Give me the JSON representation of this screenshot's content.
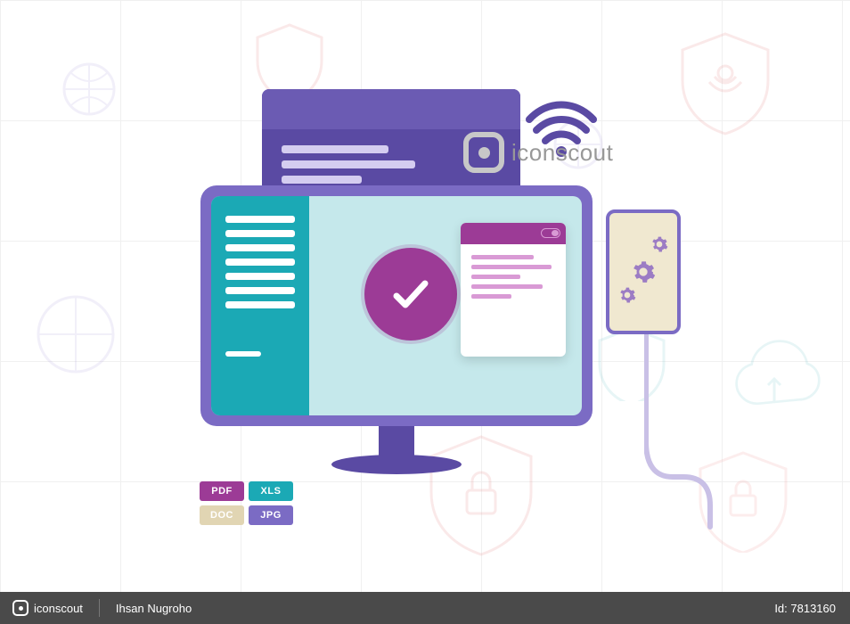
{
  "watermark": {
    "brand": "iconscout"
  },
  "footer": {
    "brand": "iconscout",
    "author": "Ihsan Nugroho",
    "id_label": "Id: 7813160"
  },
  "file_badges": [
    {
      "label": "PDF",
      "bg": "#9c3b96"
    },
    {
      "label": "XLS",
      "bg": "#1ba9b5"
    },
    {
      "label": "DOC",
      "bg": "#e1d5b3"
    },
    {
      "label": "JPG",
      "bg": "#7b6bc4"
    }
  ],
  "colors": {
    "monitor_shell": "#7b6bc4",
    "screen": "#c5e8eb",
    "side_panel": "#1ba9b5",
    "check_badge": "#9c3b96",
    "back_doc": "#5a4aa3",
    "back_doc_hdr": "#6b5bb3",
    "note_hdr": "#9c3b96",
    "wifi": "#5a4aa3",
    "phone_border": "#7b6bc4",
    "phone_fill": "#f0e8d0",
    "gear": "#9c7cc4",
    "cable": "#c9c0e6",
    "footer_bg": "#4a4a4a",
    "grid": "#f0f0f0",
    "faded_red": "#e88a8a",
    "faded_teal": "#7dcdd0",
    "faded_purple": "#b8a8e0"
  },
  "back_doc_lines": [
    120,
    150,
    90,
    60
  ],
  "side_lines": 7,
  "note_lines": [
    70,
    90,
    55,
    80,
    45
  ],
  "phone_gear_sizes": [
    20,
    28,
    20
  ]
}
